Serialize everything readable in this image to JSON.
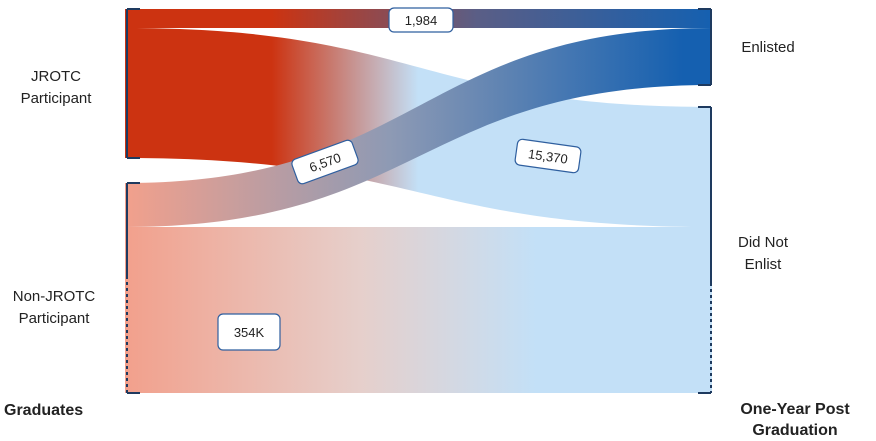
{
  "left_nodes": {
    "jrotc": "JROTC Participant",
    "non_jrotc": "Non-JROTC Participant"
  },
  "right_nodes": {
    "enlisted": "Enlisted",
    "did_not_enlist": "Did Not Enlist"
  },
  "axis_titles": {
    "left": "Graduates",
    "right": "One-Year Post Graduation"
  },
  "flows": [
    {
      "from": "JROTC Participant",
      "to": "Enlisted",
      "label": "1,984"
    },
    {
      "from": "JROTC Participant",
      "to": "Did Not Enlist",
      "label": "15,370"
    },
    {
      "from": "Non-JROTC Participant",
      "to": "Enlisted",
      "label": "6,570"
    },
    {
      "from": "Non-JROTC Participant",
      "to": "Did Not Enlist",
      "label": "354K"
    }
  ],
  "colors": {
    "jrotc": "#cc3311",
    "non_jrotc": "#f2a08c",
    "enlisted": "#1560b0",
    "did_not_enlist": "#c3e0f7",
    "node_bar": "#1e3a5f"
  }
}
